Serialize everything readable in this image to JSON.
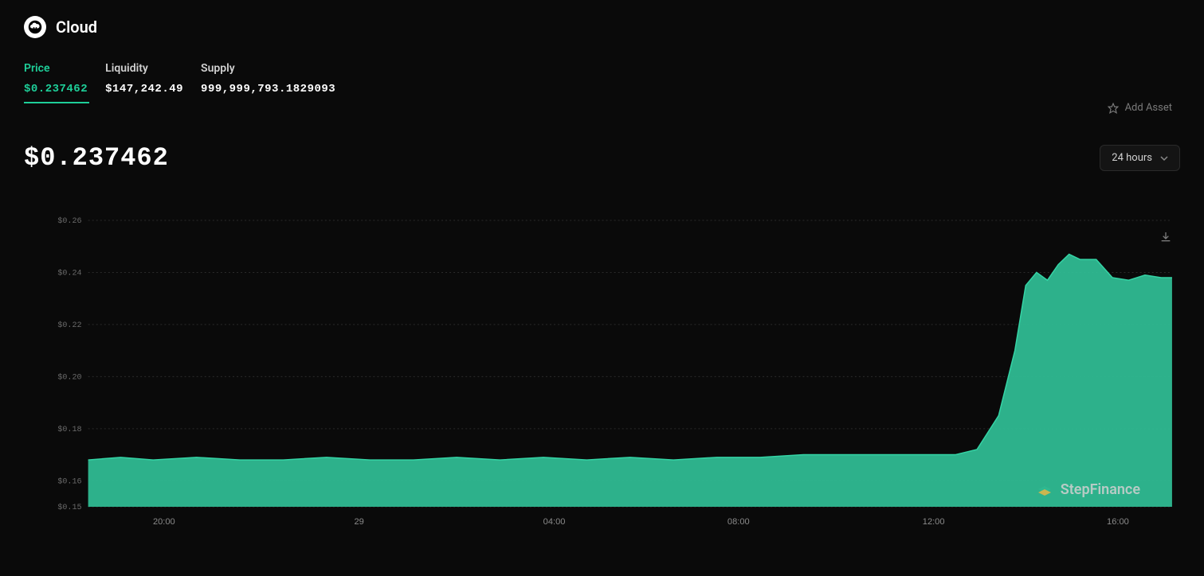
{
  "token": {
    "name": "Cloud",
    "logo_bg": "#ffffff"
  },
  "stats": {
    "price": {
      "label": "Price",
      "value": "$0.237462",
      "active": true
    },
    "liquidity": {
      "label": "Liquidity",
      "value": "$147,242.49",
      "active": false
    },
    "supply": {
      "label": "Supply",
      "value": "999,999,793.1829093",
      "active": false
    }
  },
  "add_asset_label": "Add Asset",
  "big_price": "$0.237462",
  "timeframe": {
    "selected": "24 hours"
  },
  "chart": {
    "type": "area",
    "background": "#0a0a0a",
    "grid_color": "#2a2a2a",
    "area_color": "#2fba92",
    "line_color": "#34d4a5",
    "y_label_color": "#6a6a6a",
    "x_label_color": "#8a8a8a",
    "y_label_fontsize": 10,
    "x_label_fontsize": 11,
    "ylim": [
      0.15,
      0.26
    ],
    "yticks": [
      0.15,
      0.16,
      0.18,
      0.2,
      0.22,
      0.24,
      0.26
    ],
    "ytick_labels": [
      "$0.15",
      "$0.16",
      "$0.18",
      "$0.20",
      "$0.22",
      "$0.24",
      "$0.26"
    ],
    "xtick_positions": [
      0.07,
      0.25,
      0.43,
      0.6,
      0.78,
      0.95
    ],
    "xtick_labels": [
      "20:00",
      "29",
      "04:00",
      "08:00",
      "12:00",
      "16:00"
    ],
    "data": [
      {
        "x": 0.0,
        "y": 0.168
      },
      {
        "x": 0.03,
        "y": 0.169
      },
      {
        "x": 0.06,
        "y": 0.168
      },
      {
        "x": 0.1,
        "y": 0.169
      },
      {
        "x": 0.14,
        "y": 0.168
      },
      {
        "x": 0.18,
        "y": 0.168
      },
      {
        "x": 0.22,
        "y": 0.169
      },
      {
        "x": 0.26,
        "y": 0.168
      },
      {
        "x": 0.3,
        "y": 0.168
      },
      {
        "x": 0.34,
        "y": 0.169
      },
      {
        "x": 0.38,
        "y": 0.168
      },
      {
        "x": 0.42,
        "y": 0.169
      },
      {
        "x": 0.46,
        "y": 0.168
      },
      {
        "x": 0.5,
        "y": 0.169
      },
      {
        "x": 0.54,
        "y": 0.168
      },
      {
        "x": 0.58,
        "y": 0.169
      },
      {
        "x": 0.62,
        "y": 0.169
      },
      {
        "x": 0.66,
        "y": 0.17
      },
      {
        "x": 0.7,
        "y": 0.17
      },
      {
        "x": 0.74,
        "y": 0.17
      },
      {
        "x": 0.78,
        "y": 0.17
      },
      {
        "x": 0.8,
        "y": 0.17
      },
      {
        "x": 0.82,
        "y": 0.172
      },
      {
        "x": 0.84,
        "y": 0.185
      },
      {
        "x": 0.855,
        "y": 0.21
      },
      {
        "x": 0.865,
        "y": 0.235
      },
      {
        "x": 0.875,
        "y": 0.24
      },
      {
        "x": 0.885,
        "y": 0.237
      },
      {
        "x": 0.895,
        "y": 0.243
      },
      {
        "x": 0.905,
        "y": 0.247
      },
      {
        "x": 0.915,
        "y": 0.245
      },
      {
        "x": 0.93,
        "y": 0.245
      },
      {
        "x": 0.945,
        "y": 0.238
      },
      {
        "x": 0.96,
        "y": 0.237
      },
      {
        "x": 0.975,
        "y": 0.239
      },
      {
        "x": 0.99,
        "y": 0.238
      },
      {
        "x": 1.0,
        "y": 0.238
      }
    ]
  },
  "watermark": {
    "text": "StepFinance"
  }
}
